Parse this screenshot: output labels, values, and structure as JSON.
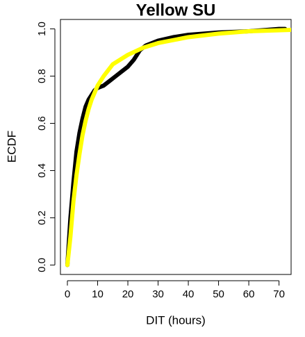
{
  "chart_data": {
    "type": "line",
    "title": "Yellow SU",
    "x_label": "DIT (hours)",
    "y_label": "ECDF",
    "xlim": [
      -2.3,
      74
    ],
    "ylim": [
      -0.04,
      1.04
    ],
    "xticks": [
      0,
      10,
      20,
      30,
      40,
      50,
      60,
      70
    ],
    "yticks": [
      {
        "value": 0,
        "label": "0.0"
      },
      0.2,
      0.4,
      0.6,
      0.8,
      {
        "value": 1,
        "label": "1.0"
      }
    ],
    "series": [
      {
        "color": "#000000",
        "x": [
          0,
          1,
          2,
          3,
          4,
          5,
          6,
          7,
          8,
          9,
          10,
          12,
          14,
          16,
          18,
          20,
          22,
          24,
          26,
          30,
          35,
          40,
          50,
          60,
          70,
          72
        ],
        "values": [
          0,
          0.2,
          0.35,
          0.48,
          0.56,
          0.62,
          0.67,
          0.7,
          0.72,
          0.74,
          0.75,
          0.76,
          0.78,
          0.8,
          0.82,
          0.84,
          0.87,
          0.91,
          0.93,
          0.95,
          0.965,
          0.975,
          0.985,
          0.99,
          1.0,
          1.0
        ]
      },
      {
        "color": "#ffff00",
        "x": [
          0,
          1,
          2,
          3,
          4,
          5,
          6,
          7,
          8,
          10,
          12,
          15,
          20,
          25,
          30,
          40,
          50,
          60,
          74
        ],
        "values": [
          0,
          0.12,
          0.27,
          0.38,
          0.47,
          0.55,
          0.61,
          0.66,
          0.7,
          0.76,
          0.8,
          0.85,
          0.89,
          0.92,
          0.94,
          0.965,
          0.98,
          0.99,
          0.996
        ]
      }
    ]
  }
}
